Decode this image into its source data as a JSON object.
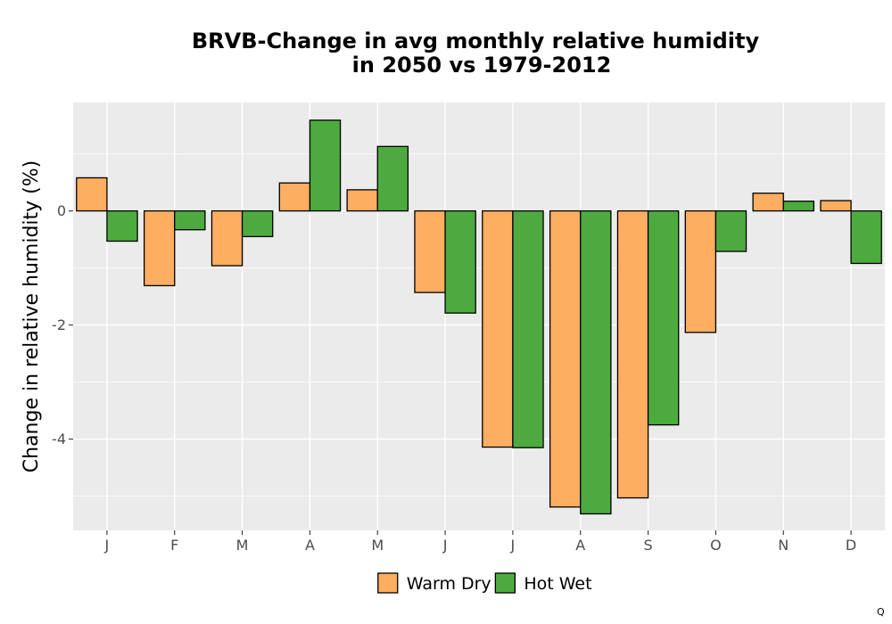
{
  "chart_data": {
    "type": "bar",
    "title_lines": [
      "BRVB-Change in avg monthly relative humidity",
      "in 2050 vs 1979-2012"
    ],
    "xlabel": "",
    "ylabel": "Change in relative humidity (%)",
    "categories": [
      "J",
      "F",
      "M",
      "A",
      "M",
      "J",
      "J",
      "A",
      "S",
      "O",
      "N",
      "D"
    ],
    "series": [
      {
        "name": "Warm Dry",
        "color": "#fdae61",
        "values": [
          0.58,
          -1.31,
          -0.96,
          0.49,
          0.37,
          -1.43,
          -4.14,
          -5.19,
          -5.03,
          -2.13,
          0.31,
          0.18
        ]
      },
      {
        "name": "Hot Wet",
        "color": "#4daa3f",
        "values": [
          -0.53,
          -0.33,
          -0.45,
          1.59,
          1.13,
          -1.79,
          -4.15,
          -5.31,
          -3.75,
          -0.71,
          0.17,
          -0.92
        ]
      }
    ],
    "ylim": [
      -5.6,
      1.9
    ],
    "yticks": [
      0,
      -2,
      -4
    ],
    "grid": true,
    "legend_position": "bottom",
    "panel_background": "#ebebeb",
    "corner_mark": "Q"
  }
}
